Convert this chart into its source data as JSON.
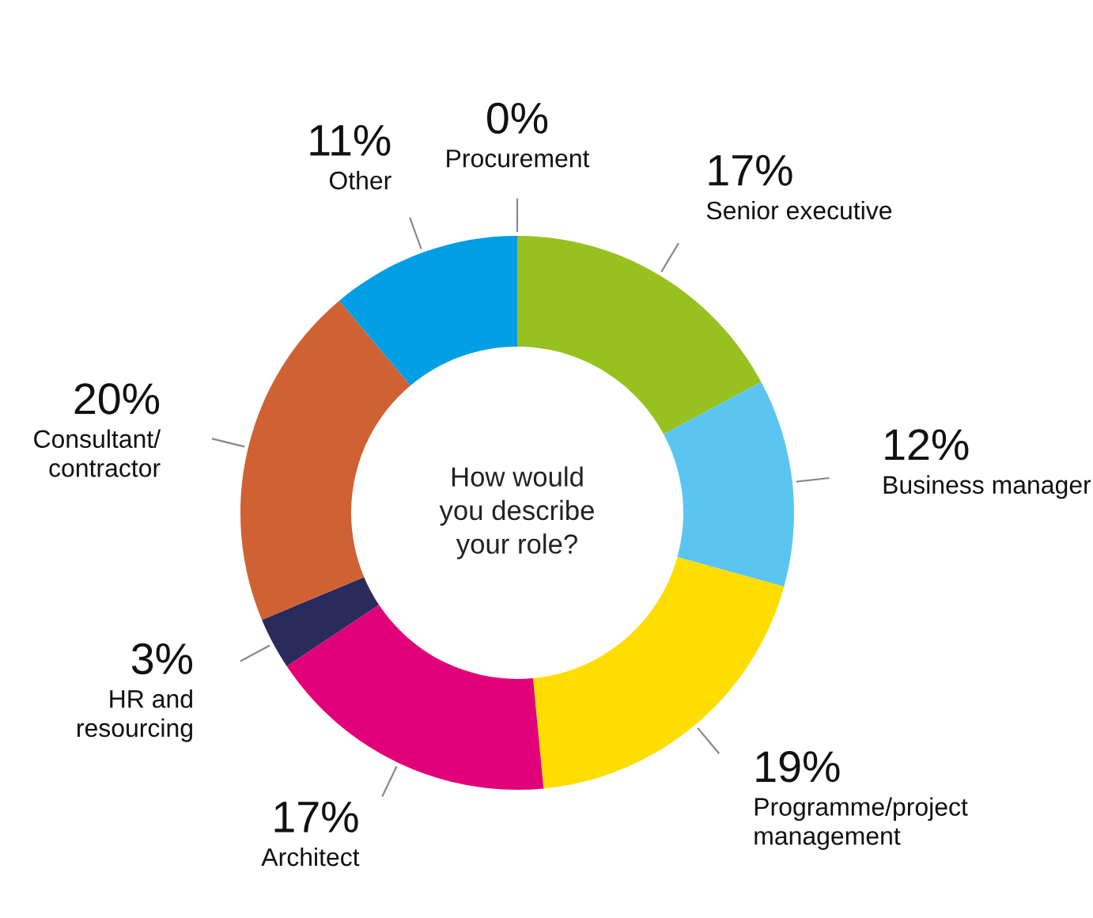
{
  "chart_data": {
    "type": "donut",
    "title": "How would you describe your role?",
    "categories": [
      "Procurement",
      "Senior executive",
      "Business manager",
      "Programme/project management",
      "Architect",
      "HR and resourcing",
      "Consultant/ contractor",
      "Other"
    ],
    "values": [
      0,
      17,
      12,
      19,
      17,
      3,
      20,
      11
    ],
    "value_labels": [
      "0%",
      "17%",
      "12%",
      "19%",
      "17%",
      "3%",
      "20%",
      "11%"
    ],
    "colors": [
      "#7f7f7f",
      "#97c11f",
      "#5bc5f2",
      "#ffdd00",
      "#e2007a",
      "#2b2a5c",
      "#cf6133",
      "#009fe3"
    ],
    "legend": false
  }
}
